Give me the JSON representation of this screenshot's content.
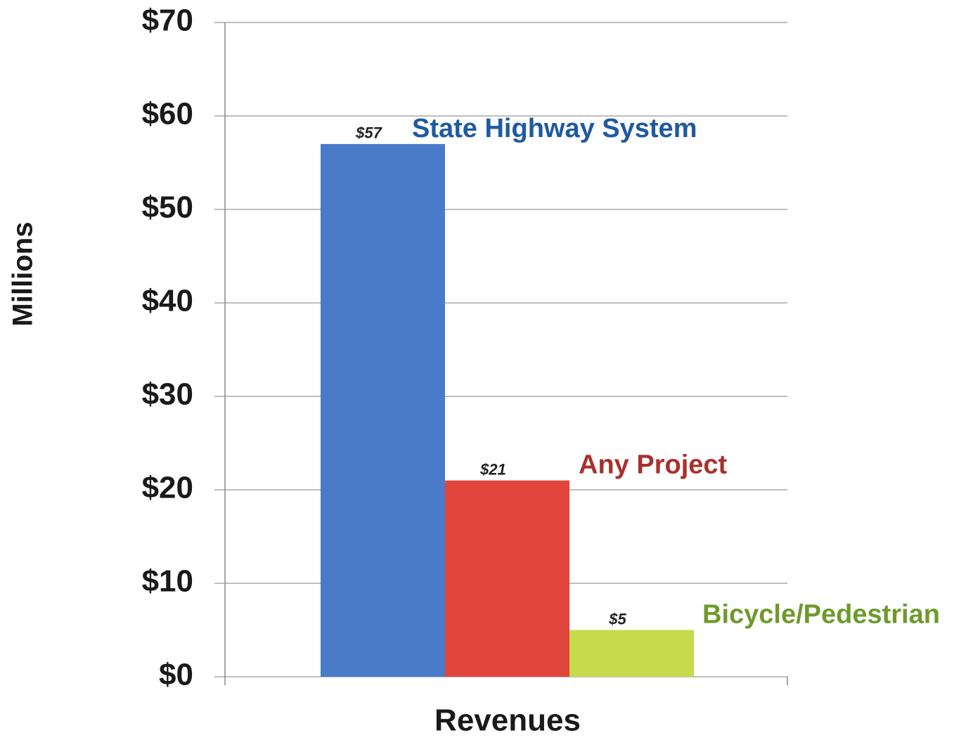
{
  "chart_data": {
    "type": "bar",
    "categories": [
      "Revenues"
    ],
    "y_label": "Millions",
    "series": [
      {
        "name": "State Highway System",
        "color": "#4a7bc8",
        "label_color": "#1f5aa0",
        "values": [
          57
        ],
        "value_labels": [
          "$57"
        ]
      },
      {
        "name": "Any Project",
        "color": "#e2453c",
        "label_color": "#a8302c",
        "values": [
          21
        ],
        "value_labels": [
          "$21"
        ]
      },
      {
        "name": "Bicycle/Pedestrian",
        "color": "#c6da4c",
        "label_color": "#6e9a2c",
        "values": [
          5
        ],
        "value_labels": [
          "$5"
        ]
      }
    ],
    "ylim": [
      0,
      70
    ],
    "yticks": [
      {
        "value": 0,
        "label": "$0"
      },
      {
        "value": 10,
        "label": "$10"
      },
      {
        "value": 20,
        "label": "$20"
      },
      {
        "value": 30,
        "label": "$30"
      },
      {
        "value": 40,
        "label": "$40"
      },
      {
        "value": 50,
        "label": "$50"
      },
      {
        "value": 60,
        "label": "$60"
      },
      {
        "value": 70,
        "label": "$70"
      }
    ],
    "grid": true
  }
}
